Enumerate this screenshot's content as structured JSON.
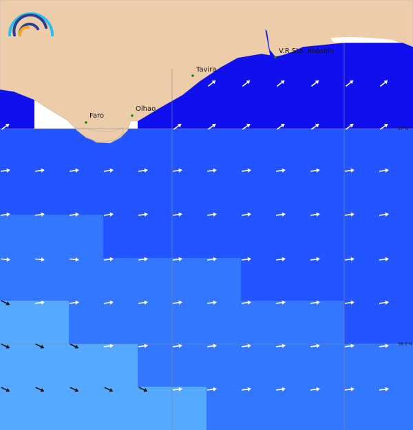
{
  "cities": [
    {
      "name": "Faro"
    },
    {
      "name": "Olhao"
    },
    {
      "name": "Tavira"
    },
    {
      "name": "V.R Sto. Antonio"
    }
  ],
  "latitude_labels": [
    "37°N",
    "36.5°N"
  ],
  "colors": {
    "land": "#edccaa",
    "sea_darkest": "#1010ee",
    "sea_dark": "#2255ff",
    "sea_mid": "#3377ff",
    "sea_light": "#55aaff",
    "no_data": "#ffffff",
    "city_marker": "#0a8a0a",
    "logo_light": "#29c0ee",
    "logo_dark": "#2a3f8f",
    "logo_accent": "#f5a623"
  }
}
